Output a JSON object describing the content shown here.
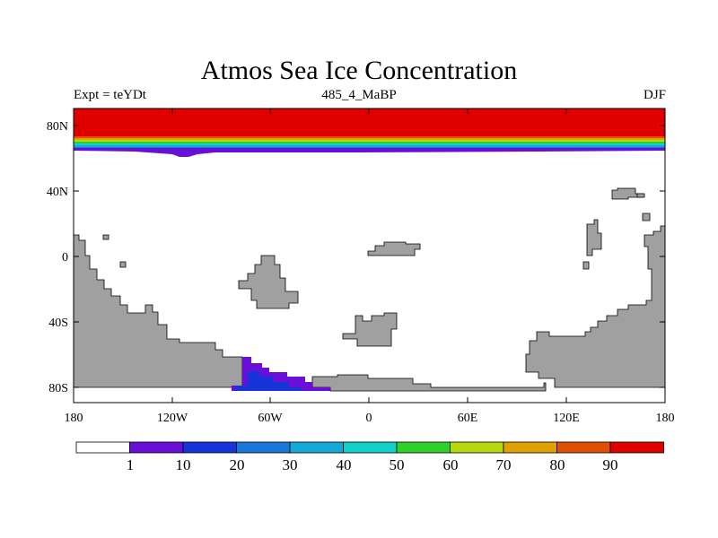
{
  "title": "Atmos Sea Ice Concentration",
  "subtitle_left": "Expt = teYDt",
  "subtitle_center": "485_4_MaBP",
  "subtitle_right": "DJF",
  "axes": {
    "lat_ticks": [
      "80N",
      "40N",
      "0",
      "40S",
      "80S"
    ],
    "lon_ticks": [
      "180",
      "120W",
      "60W",
      "0",
      "60E",
      "120E",
      "180"
    ]
  },
  "colorbar": {
    "labels": [
      "1",
      "10",
      "20",
      "30",
      "40",
      "50",
      "60",
      "70",
      "80",
      "90"
    ],
    "colors": [
      "#ffffff",
      "#6a0fd8",
      "#1634d8",
      "#1878d8",
      "#14a8d8",
      "#10d0c8",
      "#2ed02a",
      "#b8d812",
      "#e0a000",
      "#e05000",
      "#e00000"
    ]
  },
  "land_color": "#a0a0a0"
}
